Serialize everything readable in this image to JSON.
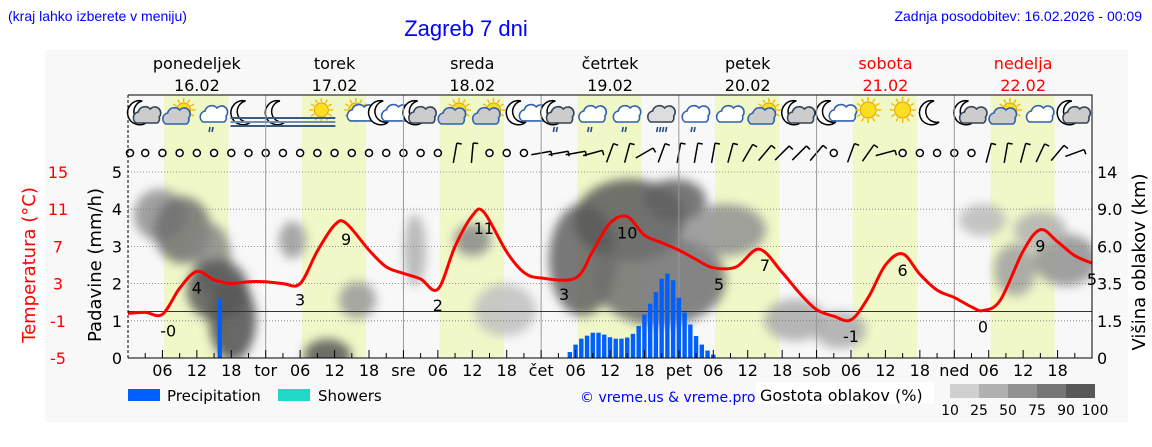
{
  "header": {
    "hint": "(kraj lahko izberete v meniju)",
    "title": "Zagreb 7 dni",
    "updated": "Zadnja posodobitev: 16.02.2026 - 00:09"
  },
  "days": [
    {
      "name": "ponedeljek",
      "date": "16.02",
      "weekend": false,
      "short": ""
    },
    {
      "name": "torek",
      "date": "17.02",
      "weekend": false,
      "short": "tor"
    },
    {
      "name": "sreda",
      "date": "18.02",
      "weekend": false,
      "short": "sre"
    },
    {
      "name": "četrtek",
      "date": "19.02",
      "weekend": false,
      "short": "čet"
    },
    {
      "name": "petek",
      "date": "20.02",
      "weekend": false,
      "short": "pet"
    },
    {
      "name": "sobota",
      "date": "21.02",
      "weekend": true,
      "short": "sob"
    },
    {
      "name": "nedelja",
      "date": "22.02",
      "weekend": true,
      "short": "ned"
    }
  ],
  "colors": {
    "title": "#0000ff",
    "weekend": "#ff0000",
    "temperature": "#ff0000",
    "precipitation": "#0060ff",
    "showers": "#20d8c8",
    "daylight": "#f0f8c8",
    "night": "#f8f8f8"
  },
  "weather_icons": [
    "moon-cloud",
    "sun-cloud",
    "cloud-light-rain",
    "moon-fog",
    "moon-fog",
    "sun-fog",
    "sun-small-cloud",
    "moon-small-cloud",
    "moon-cloud",
    "sun-cloud",
    "sun-cloud",
    "moon-small-cloud",
    "moon-cloud-light-rain",
    "cloud-light-rain",
    "cloud-light-rain",
    "cloud-heavy-rain",
    "cloud-light-rain",
    "cloud",
    "sun-cloud",
    "moon-cloud",
    "moon-small-cloud",
    "sun",
    "sun",
    "moon",
    "moon-cloud",
    "sun-cloud",
    "cloud",
    "moon-cloud"
  ],
  "wind_barbs": [
    null,
    null,
    null,
    null,
    null,
    null,
    null,
    null,
    null,
    null,
    null,
    null,
    null,
    null,
    null,
    null,
    null,
    null,
    null,
    10,
    5,
    null,
    null,
    null,
    80,
    80,
    80,
    75,
    20,
    15,
    60,
    20,
    10,
    10,
    10,
    15,
    30,
    40,
    45,
    45,
    40,
    null,
    20,
    35,
    75,
    null,
    null,
    null,
    null,
    null,
    15,
    10,
    15,
    25,
    40,
    70
  ],
  "chart_data": {
    "type": "line+bar",
    "x_ticks": [
      "06",
      "12",
      "18",
      "tor",
      "06",
      "12",
      "18",
      "sre",
      "06",
      "12",
      "18",
      "čet",
      "06",
      "12",
      "18",
      "pet",
      "06",
      "12",
      "18",
      "sob",
      "06",
      "12",
      "18",
      "ned",
      "06",
      "12",
      "18"
    ],
    "precipitation_axis": {
      "label": "Padavine (mm/h)",
      "ticks": [
        "0",
        "1",
        "2",
        "3",
        "4",
        "5"
      ],
      "ylim": [
        0,
        5
      ]
    },
    "temperature_axis": {
      "label": "Temperatura (°C)",
      "ticks": [
        "-5",
        "-1",
        "3",
        "7",
        "11",
        "15"
      ],
      "ylim": [
        -5,
        15
      ]
    },
    "cloud_height_axis": {
      "label": "Višina oblakov (km)",
      "ticks": [
        "0",
        "1.5",
        "3.5",
        "6.0",
        "9.0",
        "14"
      ]
    },
    "temperature": [
      [
        "16.02 00:00",
        -0.2
      ],
      [
        "16.02 03:00",
        -0.1
      ],
      [
        "16.02 06:00",
        -0.3
      ],
      [
        "16.02 09:00",
        2.5
      ],
      [
        "16.02 12:00",
        4.3
      ],
      [
        "16.02 15:00",
        3.4
      ],
      [
        "16.02 18:00",
        3.0
      ],
      [
        "16.02 21:00",
        3.2
      ],
      [
        "17.02 00:00",
        3.2
      ],
      [
        "17.02 03:00",
        3.0
      ],
      [
        "17.02 06:00",
        3.0
      ],
      [
        "17.02 09:00",
        6.5
      ],
      [
        "17.02 12:00",
        9.3
      ],
      [
        "17.02 14:00",
        9.5
      ],
      [
        "17.02 18:00",
        6.6
      ],
      [
        "17.02 21:00",
        4.8
      ],
      [
        "18.02 00:00",
        4.1
      ],
      [
        "18.02 03:00",
        3.5
      ],
      [
        "18.02 06:00",
        2.4
      ],
      [
        "18.02 09:00",
        7.0
      ],
      [
        "18.02 12:00",
        10.3
      ],
      [
        "18.02 14:00",
        10.7
      ],
      [
        "18.02 18:00",
        6.4
      ],
      [
        "18.02 21:00",
        4.2
      ],
      [
        "19.02 00:00",
        3.6
      ],
      [
        "19.02 06:00",
        3.6
      ],
      [
        "19.02 09:00",
        6.5
      ],
      [
        "19.02 12:00",
        9.5
      ],
      [
        "19.02 15:00",
        10.2
      ],
      [
        "19.02 18:00",
        8.2
      ],
      [
        "19.02 21:00",
        7.4
      ],
      [
        "20.02 00:00",
        6.6
      ],
      [
        "20.02 03:00",
        5.6
      ],
      [
        "20.02 06:00",
        4.7
      ],
      [
        "20.02 10:00",
        4.8
      ],
      [
        "20.02 14:00",
        6.7
      ],
      [
        "20.02 18:00",
        4.2
      ],
      [
        "20.02 21:00",
        2.0
      ],
      [
        "21.02 00:00",
        0.2
      ],
      [
        "21.02 03:00",
        -0.5
      ],
      [
        "21.02 06:00",
        -0.9
      ],
      [
        "21.02 09:00",
        1.5
      ],
      [
        "21.02 12:00",
        5.0
      ],
      [
        "21.02 15:00",
        6.2
      ],
      [
        "21.02 18:00",
        4.0
      ],
      [
        "21.02 21:00",
        2.3
      ],
      [
        "22.02 00:00",
        1.5
      ],
      [
        "22.02 03:00",
        0.5
      ],
      [
        "22.02 05:00",
        0.1
      ],
      [
        "22.02 08:00",
        1.2
      ],
      [
        "22.02 12:00",
        6.5
      ],
      [
        "22.02 15:00",
        8.8
      ],
      [
        "22.02 18:00",
        7.5
      ],
      [
        "22.02 21:00",
        6.0
      ],
      [
        "23.02 00:00",
        5.2
      ]
    ],
    "temperature_labels": [
      [
        "16.02 07:00",
        "-0"
      ],
      [
        "16.02 12:00",
        "4"
      ],
      [
        "17.02 06:00",
        "3"
      ],
      [
        "17.02 14:00",
        "9"
      ],
      [
        "18.02 06:00",
        "2"
      ],
      [
        "18.02 14:00",
        "11"
      ],
      [
        "19.02 04:00",
        "3"
      ],
      [
        "19.02 15:00",
        "10"
      ],
      [
        "20.02 07:00",
        "5"
      ],
      [
        "20.02 15:00",
        "7"
      ],
      [
        "21.02 06:00",
        "-1"
      ],
      [
        "21.02 15:00",
        "6"
      ],
      [
        "22.02 05:00",
        "0"
      ],
      [
        "22.02 15:00",
        "9"
      ],
      [
        "23.02 00:00",
        "5"
      ]
    ],
    "precipitation": [
      [
        "16.02 16:00",
        1.6
      ],
      [
        "19.02 05:00",
        0.16
      ],
      [
        "19.02 06:00",
        0.36
      ],
      [
        "19.02 07:00",
        0.52
      ],
      [
        "19.02 08:00",
        0.6
      ],
      [
        "19.02 09:00",
        0.68
      ],
      [
        "19.02 10:00",
        0.68
      ],
      [
        "19.02 11:00",
        0.63
      ],
      [
        "19.02 12:00",
        0.56
      ],
      [
        "19.02 13:00",
        0.52
      ],
      [
        "19.02 14:00",
        0.52
      ],
      [
        "19.02 15:00",
        0.55
      ],
      [
        "19.02 16:00",
        0.65
      ],
      [
        "19.02 17:00",
        0.86
      ],
      [
        "19.02 18:00",
        1.17
      ],
      [
        "19.02 19:00",
        1.46
      ],
      [
        "19.02 20:00",
        1.77
      ],
      [
        "19.02 21:00",
        2.13
      ],
      [
        "19.02 22:00",
        2.27
      ],
      [
        "19.02 23:00",
        2.09
      ],
      [
        "20.02 00:00",
        1.62
      ],
      [
        "20.02 01:00",
        1.22
      ],
      [
        "20.02 02:00",
        0.9
      ],
      [
        "20.02 03:00",
        0.59
      ],
      [
        "20.02 04:00",
        0.36
      ],
      [
        "20.02 05:00",
        0.2
      ],
      [
        "20.02 06:00",
        0.09
      ]
    ],
    "legend": {
      "precipitation": "Precipitation",
      "showers": "Showers",
      "cloud_density_title": "Gostota oblakov (%)",
      "cloud_density_levels": [
        "10",
        "25",
        "50",
        "75",
        "90",
        "100"
      ],
      "cloud_density_colors": [
        "#d0d0d0",
        "#b0b0b0",
        "#909090",
        "#767676",
        "#585858"
      ]
    },
    "copyright": "© vreme.us & vreme.pro"
  }
}
